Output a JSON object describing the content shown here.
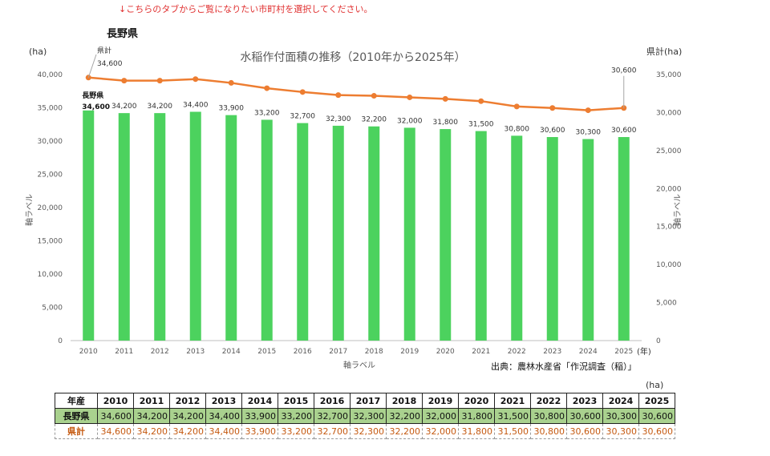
{
  "notice": "↓こちらのタブからご覧になりたい市町村を選択してください。",
  "prefecture_title": "長野県",
  "table_unit": "(ha)",
  "table": {
    "header_label": "年産",
    "row_pref_label": "長野県",
    "row_total_label": "県計",
    "years": [
      "2010",
      "2011",
      "2012",
      "2013",
      "2014",
      "2015",
      "2016",
      "2017",
      "2018",
      "2019",
      "2020",
      "2021",
      "2022",
      "2023",
      "2024",
      "2025"
    ],
    "pref_values": [
      "34,600",
      "34,200",
      "34,200",
      "34,400",
      "33,900",
      "33,200",
      "32,700",
      "32,300",
      "32,200",
      "32,000",
      "31,800",
      "31,500",
      "30,800",
      "30,600",
      "30,300",
      "30,600"
    ],
    "total_values": [
      "34,600",
      "34,200",
      "34,200",
      "34,400",
      "33,900",
      "33,200",
      "32,700",
      "32,300",
      "32,200",
      "32,000",
      "31,800",
      "31,500",
      "30,800",
      "30,600",
      "30,300",
      "30,600"
    ]
  },
  "colors": {
    "bar": "#4cd25e",
    "line": "#ed7d31",
    "notice": "#e03030",
    "pref_row": "#a9d18e"
  },
  "chart_data": {
    "type": "bar",
    "title": "水稲作付面積の推移（2010年から2025年）",
    "xlabel": "軸ラベル",
    "x_unit": "(年)",
    "ylabel_left": "軸ラベル",
    "ylabel_right": "軸ラベル",
    "y_unit_left": "(ha)",
    "y_unit_right": "県計(ha)",
    "source": "出典：農林水産省「作況調査（稲）」",
    "categories": [
      "2010",
      "2011",
      "2012",
      "2013",
      "2014",
      "2015",
      "2016",
      "2017",
      "2018",
      "2019",
      "2020",
      "2021",
      "2022",
      "2023",
      "2024",
      "2025"
    ],
    "ylim_left": [
      0,
      40000
    ],
    "yticks_left": [
      "0",
      "5,000",
      "10,000",
      "15,000",
      "20,000",
      "25,000",
      "30,000",
      "35,000",
      "40,000"
    ],
    "ylim_right": [
      0,
      35000
    ],
    "yticks_right": [
      "0",
      "5,000",
      "10,000",
      "15,000",
      "20,000",
      "25,000",
      "30,000",
      "35,000"
    ],
    "series": [
      {
        "name": "長野県",
        "kind": "bar",
        "axis": "left",
        "values": [
          34600,
          34200,
          34200,
          34400,
          33900,
          33200,
          32700,
          32300,
          32200,
          32000,
          31800,
          31500,
          30800,
          30600,
          30300,
          30600
        ],
        "labels": [
          "34,600",
          "34,200",
          "34,200",
          "34,400",
          "33,900",
          "33,200",
          "32,700",
          "32,300",
          "32,200",
          "32,000",
          "31,800",
          "31,500",
          "30,800",
          "30,600",
          "30,300",
          "30,600"
        ]
      },
      {
        "name": "県計",
        "kind": "line",
        "axis": "right",
        "values": [
          34600,
          34200,
          34200,
          34400,
          33900,
          33200,
          32700,
          32300,
          32200,
          32000,
          31800,
          31500,
          30800,
          30600,
          30300,
          30600
        ],
        "labels": [
          "34,600",
          "30,600"
        ]
      }
    ],
    "grid": false
  }
}
